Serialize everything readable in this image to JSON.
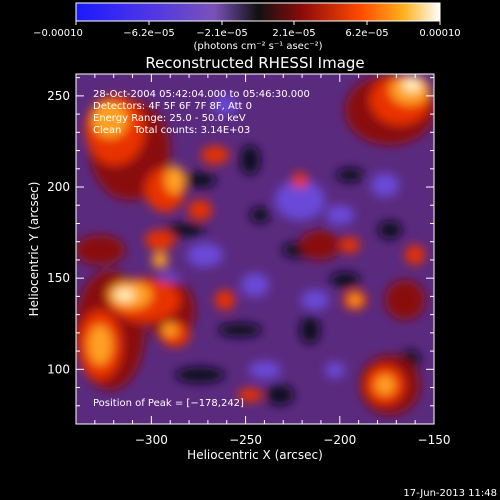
{
  "colorbar": {
    "tick_labels": [
      "−0.00010",
      "−6.2e−05",
      "−2.1e−05",
      "2.1e−05",
      "6.2e−05",
      "0.00010"
    ],
    "unit_label": "(photons cm⁻² s⁻¹ asec⁻²)",
    "range": [
      -0.0001,
      0.0001
    ]
  },
  "chart_data": {
    "type": "heatmap",
    "title": "Reconstructed RHESSI Image",
    "xlabel": "Heliocentric X (arcsec)",
    "ylabel": "Heliocentric Y (arcsec)",
    "xlim": [
      -340,
      -150
    ],
    "ylim": [
      70,
      262
    ],
    "x_ticks": [
      -300,
      -250,
      -200,
      -150
    ],
    "x_tick_labels": [
      "−300",
      "−250",
      "−200",
      "−150"
    ],
    "y_ticks": [
      100,
      150,
      200,
      250
    ],
    "y_tick_labels": [
      "100",
      "150",
      "200",
      "250"
    ],
    "colormap": "hot-blue diverging",
    "annotations": [
      "28-Oct-2004 05:42:04.000 to 05:46:30.000",
      "Detectors: 4F 5F 6F 7F 8F, Att 0",
      "Energy Range: 25.0 - 50.0 keV",
      "Clean    Total counts: 3.14E+03"
    ],
    "peak_label": "Position of Peak = [−178,242]",
    "peak_position": [
      -178,
      242
    ]
  },
  "footer": {
    "date": "17-Jun-2013 11:48"
  }
}
